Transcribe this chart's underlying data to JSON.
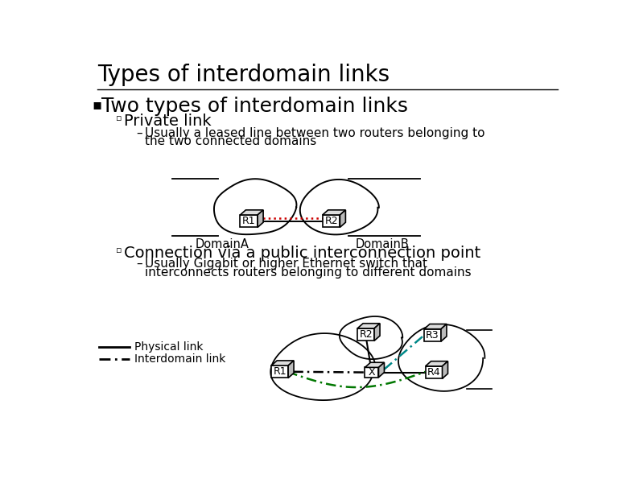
{
  "title": "Types of interdomain links",
  "bullet1": "Two types of interdomain links",
  "sub1": "Private link",
  "sub1_desc1": "Usually a leased line between two routers belonging to",
  "sub1_desc2": "the two connected domains",
  "sub2": "Connection via a public interconnection point",
  "sub2_desc1": "Usually Gigabit or higher Ethernet switch that",
  "sub2_desc2": "interconnects routers belonging to different domains",
  "legend1": "Physical link",
  "legend2": "Interdomain link",
  "domainA": "DomainA",
  "domainB": "DomainB",
  "r1": "R1",
  "r2": "R2",
  "r3": "R3",
  "r4": "R4",
  "x_label": "X",
  "bg_color": "#ffffff",
  "text_color": "#000000",
  "red_color": "#cc0000",
  "green_color": "#007700",
  "teal_color": "#008888",
  "title_fontsize": 20,
  "bullet1_fontsize": 18,
  "sub_fontsize": 14,
  "body_fontsize": 11,
  "legend_fontsize": 10
}
